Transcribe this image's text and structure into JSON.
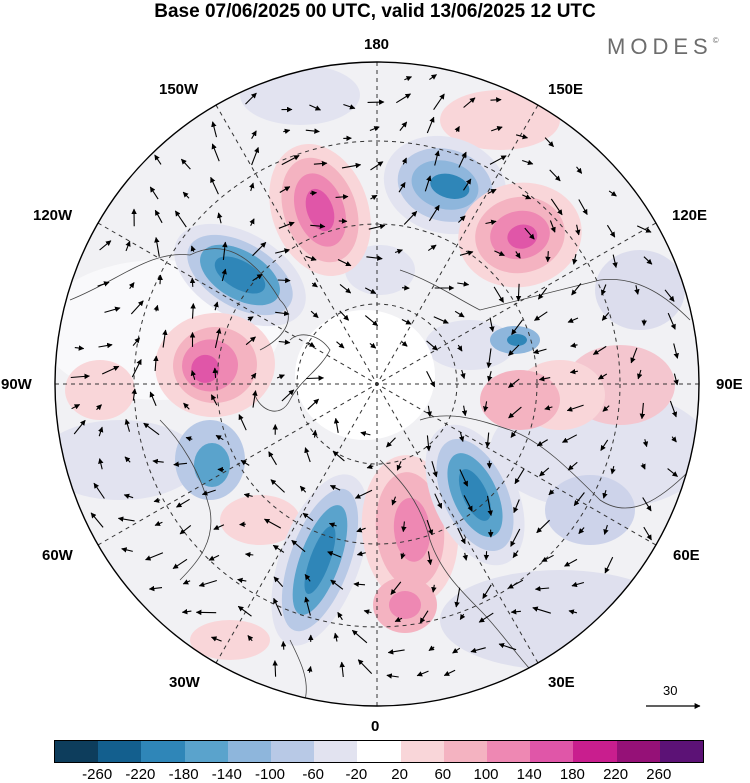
{
  "title": "Base 07/06/2025 00 UTC, valid 13/06/2025 12 UTC",
  "brand": {
    "name": "MODES",
    "mark": "©"
  },
  "longitude_labels": {
    "top": "180",
    "bottom": "0",
    "left": "90W",
    "right": "90E",
    "upper_left_1": "150W",
    "upper_left_2": "120W",
    "upper_right_1": "150E",
    "upper_right_2": "120E",
    "lower_left_1": "60W",
    "lower_left_2": "30W",
    "lower_right_1": "60E",
    "lower_right_2": "30E"
  },
  "reference_vector": {
    "label": "30"
  },
  "colorbar": {
    "colors": [
      "#0d3d5c",
      "#135f8e",
      "#2f86b8",
      "#5aa3cc",
      "#8eb6dc",
      "#b8c9e6",
      "#e2e3f0",
      "#ffffff",
      "#f9d6d9",
      "#f4b3c1",
      "#ee88b3",
      "#e056a8",
      "#c91e8e",
      "#951177",
      "#5c1276"
    ],
    "ticks": [
      "-260",
      "-220",
      "-180",
      "-140",
      "-100",
      "-60",
      "-20",
      "20",
      "60",
      "100",
      "140",
      "180",
      "220",
      "260"
    ]
  }
}
